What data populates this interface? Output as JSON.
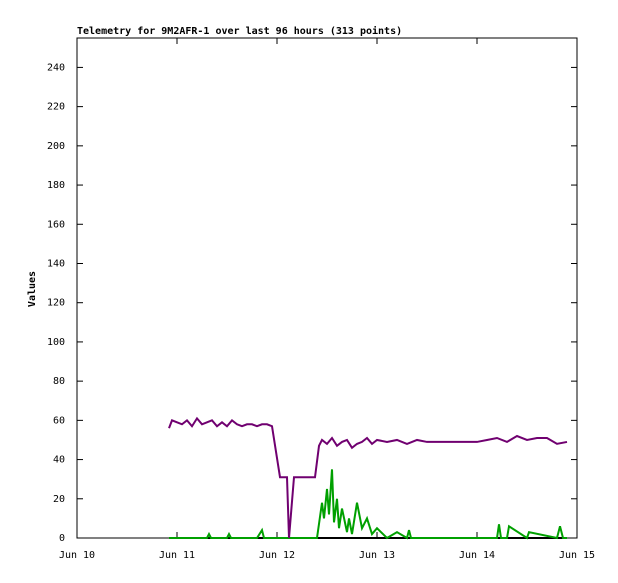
{
  "chart_data": {
    "type": "line",
    "title": "Telemetry for 9M2AFR-1 over last 96 hours (313 points)",
    "y_label": "Values",
    "xlim": [
      10,
      15
    ],
    "xticks": [
      {
        "value": 10,
        "label": "Jun 10"
      },
      {
        "value": 11,
        "label": "Jun 11"
      },
      {
        "value": 12,
        "label": "Jun 12"
      },
      {
        "value": 13,
        "label": "Jun 13"
      },
      {
        "value": 14,
        "label": "Jun 14"
      },
      {
        "value": 15,
        "label": "Jun 15"
      }
    ],
    "ylim": [
      0,
      255
    ],
    "yticks": [
      0,
      20,
      40,
      60,
      80,
      100,
      120,
      140,
      160,
      180,
      200,
      220,
      240
    ],
    "series": [
      {
        "color": "#000000",
        "x": [
          10.92,
          14.9
        ],
        "values": [
          0,
          0
        ]
      },
      {
        "color": "#00a000",
        "x": [
          10.92,
          11.3,
          11.32,
          11.34,
          11.5,
          11.52,
          11.54,
          11.8,
          11.85,
          11.87,
          12.4,
          12.45,
          12.47,
          12.5,
          12.52,
          12.55,
          12.57,
          12.6,
          12.62,
          12.65,
          12.7,
          12.72,
          12.75,
          12.8,
          12.85,
          12.9,
          12.95,
          13.0,
          13.1,
          13.2,
          13.3,
          13.32,
          13.34,
          13.5,
          14.2,
          14.22,
          14.24,
          14.3,
          14.32,
          14.5,
          14.52,
          14.8,
          14.83,
          14.86,
          14.9
        ],
        "values": [
          0,
          0,
          2,
          0,
          0,
          2,
          0,
          0,
          4,
          0,
          0,
          18,
          10,
          25,
          12,
          35,
          8,
          20,
          5,
          15,
          3,
          10,
          2,
          18,
          5,
          10,
          2,
          5,
          0,
          3,
          0,
          4,
          0,
          0,
          0,
          7,
          0,
          0,
          6,
          0,
          3,
          0,
          6,
          0,
          0
        ]
      },
      {
        "color": "#700070",
        "x": [
          10.92,
          10.95,
          11.0,
          11.05,
          11.1,
          11.15,
          11.2,
          11.25,
          11.3,
          11.35,
          11.4,
          11.45,
          11.5,
          11.55,
          11.6,
          11.65,
          11.7,
          11.75,
          11.8,
          11.85,
          11.9,
          11.95,
          12.03,
          12.1,
          12.12,
          12.17,
          12.3,
          12.38,
          12.42,
          12.45,
          12.5,
          12.55,
          12.6,
          12.65,
          12.7,
          12.75,
          12.8,
          12.85,
          12.9,
          12.95,
          13.0,
          13.1,
          13.2,
          13.3,
          13.4,
          13.5,
          13.6,
          13.7,
          13.8,
          13.9,
          14.0,
          14.1,
          14.2,
          14.3,
          14.4,
          14.5,
          14.6,
          14.7,
          14.8,
          14.9
        ],
        "values": [
          56,
          60,
          59,
          58,
          60,
          57,
          61,
          58,
          59,
          60,
          57,
          59,
          57,
          60,
          58,
          57,
          58,
          58,
          57,
          58,
          58,
          57,
          31,
          31,
          0,
          31,
          31,
          31,
          47,
          50,
          48,
          51,
          47,
          49,
          50,
          46,
          48,
          49,
          51,
          48,
          50,
          49,
          50,
          48,
          50,
          49,
          49,
          49,
          49,
          49,
          49,
          50,
          51,
          49,
          52,
          50,
          51,
          51,
          48,
          49
        ]
      }
    ]
  }
}
